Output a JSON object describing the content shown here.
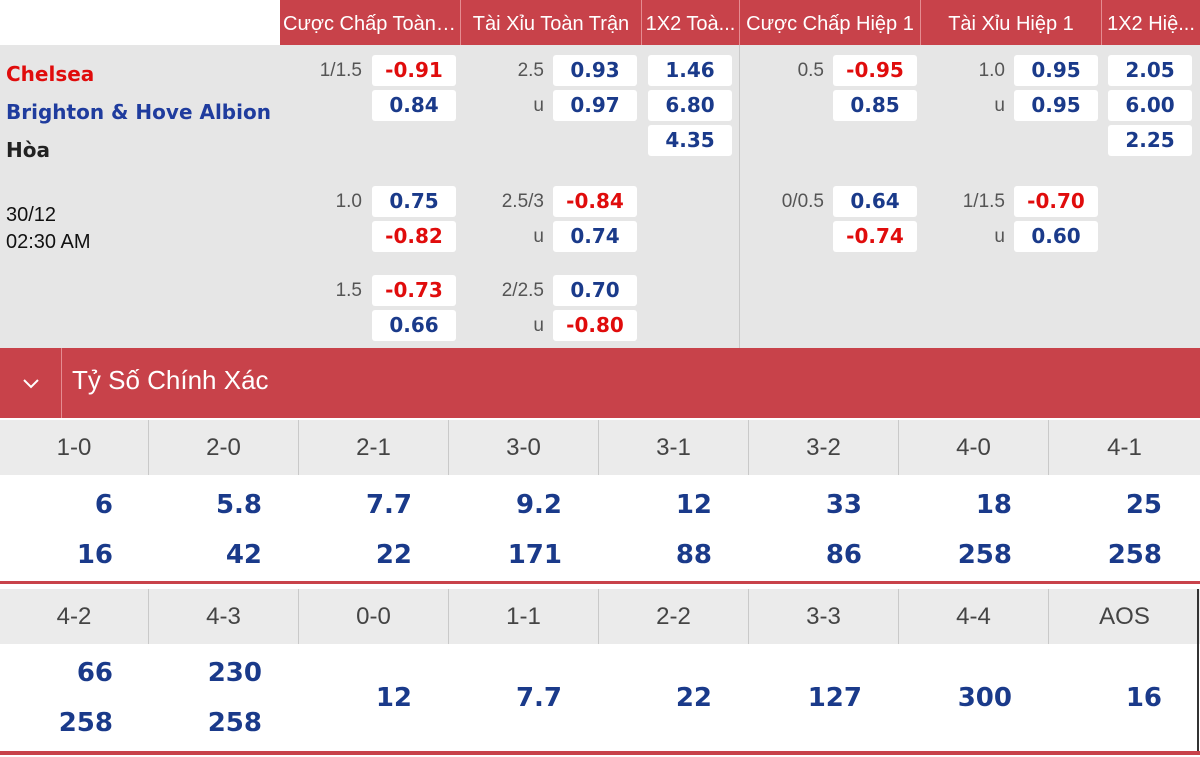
{
  "header": {
    "columns": [
      "Cược Chấp Toàn ...",
      "Tài Xỉu Toàn Trận",
      "1X2 Toà...",
      "Cược Chấp Hiệp 1",
      "Tài Xỉu Hiệp 1",
      "1X2 Hiệ..."
    ]
  },
  "match": {
    "home": "Chelsea",
    "away": "Brighton & Hove Albion",
    "draw": "Hòa",
    "date": "30/12",
    "time": "02:30 AM"
  },
  "ft_handicap": [
    {
      "line": "1/1.5",
      "home": "-0.91",
      "away": "0.84"
    },
    {
      "line": "1.0",
      "home": "0.75",
      "away": "-0.82"
    },
    {
      "line": "1.5",
      "home": "-0.73",
      "away": "0.66"
    }
  ],
  "ft_overunder": [
    {
      "line": "2.5",
      "u_label": "u",
      "over": "0.93",
      "under": "0.97"
    },
    {
      "line": "2.5/3",
      "u_label": "u",
      "over": "-0.84",
      "under": "0.74"
    },
    {
      "line": "2/2.5",
      "u_label": "u",
      "over": "0.70",
      "under": "-0.80"
    }
  ],
  "ft_1x2": {
    "home": "1.46",
    "away": "6.80",
    "draw": "4.35"
  },
  "h1_handicap": [
    {
      "line": "0.5",
      "home": "-0.95",
      "away": "0.85"
    },
    {
      "line": "0/0.5",
      "home": "0.64",
      "away": "-0.74"
    }
  ],
  "h1_overunder": [
    {
      "line": "1.0",
      "u_label": "u",
      "over": "0.95",
      "under": "0.95"
    },
    {
      "line": "1/1.5",
      "u_label": "u",
      "over": "-0.70",
      "under": "0.60"
    }
  ],
  "h1_1x2": {
    "home": "2.05",
    "away": "6.00",
    "draw": "2.25"
  },
  "correct_score": {
    "title": "Tỷ Số Chính Xác",
    "row1": [
      {
        "score": "1-0",
        "home": "6",
        "away": "16"
      },
      {
        "score": "2-0",
        "home": "5.8",
        "away": "42"
      },
      {
        "score": "2-1",
        "home": "7.7",
        "away": "22"
      },
      {
        "score": "3-0",
        "home": "9.2",
        "away": "171"
      },
      {
        "score": "3-1",
        "home": "12",
        "away": "88"
      },
      {
        "score": "3-2",
        "home": "33",
        "away": "86"
      },
      {
        "score": "4-0",
        "home": "18",
        "away": "258"
      },
      {
        "score": "4-1",
        "home": "25",
        "away": "258"
      }
    ],
    "row2": [
      {
        "score": "4-2",
        "home": "66",
        "away": "258"
      },
      {
        "score": "4-3",
        "home": "230",
        "away": "258"
      },
      {
        "score": "0-0",
        "single": "12"
      },
      {
        "score": "1-1",
        "single": "7.7"
      },
      {
        "score": "2-2",
        "single": "22"
      },
      {
        "score": "3-3",
        "single": "127"
      },
      {
        "score": "4-4",
        "single": "300"
      },
      {
        "score": "AOS",
        "single": "16"
      }
    ]
  }
}
